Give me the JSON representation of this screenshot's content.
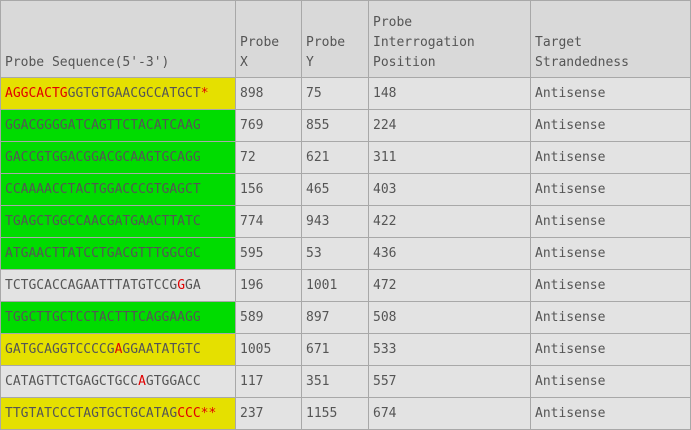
{
  "headers": {
    "sequence": [
      "Probe Sequence(5'-3')"
    ],
    "probe_x": [
      "Probe",
      "X"
    ],
    "probe_y": [
      "Probe",
      "Y"
    ],
    "interrogation": [
      "Probe",
      "Interrogation",
      "Position"
    ],
    "strand": [
      "Target",
      "Strandedness"
    ]
  },
  "colors": {
    "yellow": "#e5e000",
    "green": "#00dc00",
    "gray": "#e3e3e3",
    "highlight_red": "#e20000"
  },
  "rows": [
    {
      "bg": "yellow",
      "segments": [
        {
          "text": "AGGCACTG",
          "red": true
        },
        {
          "text": "GGTGTGAACGCCATGCT",
          "red": false
        },
        {
          "text": "*",
          "red": true
        }
      ],
      "x": "898",
      "y": "75",
      "pos": "148",
      "strand": "Antisense"
    },
    {
      "bg": "green",
      "segments": [
        {
          "text": "GGACGGGGATCAGTTCTACATCAAG",
          "red": false
        }
      ],
      "x": "769",
      "y": "855",
      "pos": "224",
      "strand": "Antisense"
    },
    {
      "bg": "green",
      "segments": [
        {
          "text": "GACCGTGGACGGACGCAAGTGCAGG",
          "red": false
        }
      ],
      "x": "72",
      "y": "621",
      "pos": "311",
      "strand": "Antisense"
    },
    {
      "bg": "green",
      "segments": [
        {
          "text": "CCAAAACCTACTGGACCCGTGAGCT",
          "red": false
        }
      ],
      "x": "156",
      "y": "465",
      "pos": "403",
      "strand": "Antisense"
    },
    {
      "bg": "green",
      "segments": [
        {
          "text": "TGAGCTGGCCAACGATGAACTTATC",
          "red": false
        }
      ],
      "x": "774",
      "y": "943",
      "pos": "422",
      "strand": "Antisense"
    },
    {
      "bg": "green",
      "segments": [
        {
          "text": "ATGAACTTATCCTGACGTTTGGCGC",
          "red": false
        }
      ],
      "x": "595",
      "y": "53",
      "pos": "436",
      "strand": "Antisense"
    },
    {
      "bg": "gray",
      "segments": [
        {
          "text": "TCTGCACCAGAATTTATGTCCG",
          "red": false
        },
        {
          "text": "G",
          "red": true
        },
        {
          "text": "GA",
          "red": false
        }
      ],
      "x": "196",
      "y": "1001",
      "pos": "472",
      "strand": "Antisense"
    },
    {
      "bg": "green",
      "segments": [
        {
          "text": "TGGCTTGCTCCTACTTTCAGGAAGG",
          "red": false
        }
      ],
      "x": "589",
      "y": "897",
      "pos": "508",
      "strand": "Antisense"
    },
    {
      "bg": "yellow",
      "segments": [
        {
          "text": "GATGCAGGTCCCCG",
          "red": false
        },
        {
          "text": "A",
          "red": true
        },
        {
          "text": "GGAATATGTC",
          "red": false
        }
      ],
      "x": "1005",
      "y": "671",
      "pos": "533",
      "strand": "Antisense"
    },
    {
      "bg": "gray",
      "segments": [
        {
          "text": "CATAGTTCTGAGCTGCC",
          "red": false
        },
        {
          "text": "A",
          "red": true
        },
        {
          "text": "GTGGACC",
          "red": false
        }
      ],
      "x": "117",
      "y": "351",
      "pos": "557",
      "strand": "Antisense"
    },
    {
      "bg": "yellow",
      "segments": [
        {
          "text": "TTGTATCCCTAGTGCTGCATAG",
          "red": false
        },
        {
          "text": "CCC**",
          "red": true
        }
      ],
      "x": "237",
      "y": "1155",
      "pos": "674",
      "strand": "Antisense"
    }
  ]
}
